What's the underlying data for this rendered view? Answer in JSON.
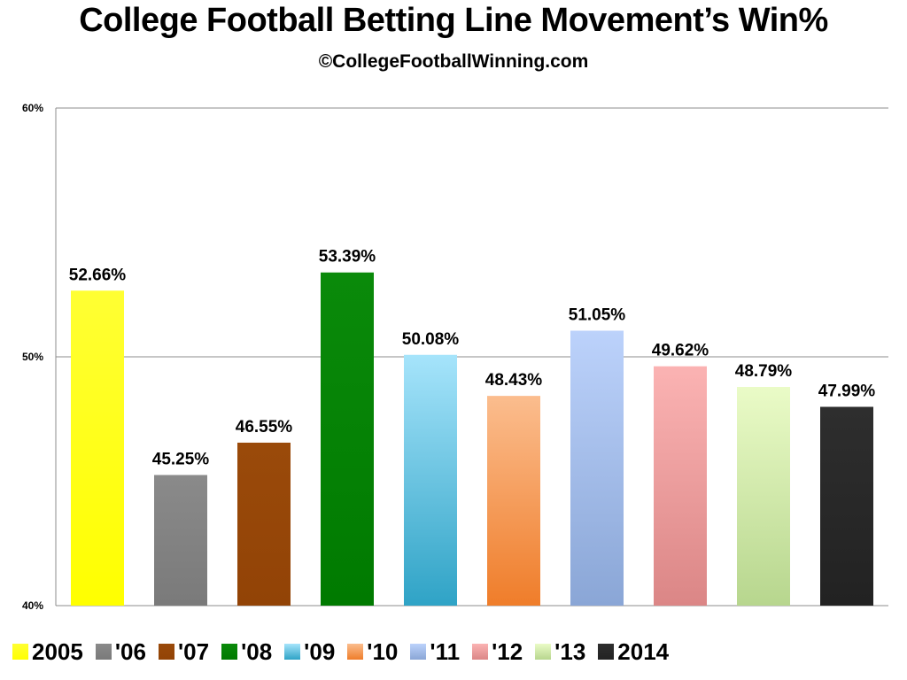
{
  "title": "College Football Betting Line Movement’s Win%",
  "subtitle": "©CollegeFootballWinning.com",
  "chart_data": {
    "type": "bar",
    "categories": [
      "2005",
      "'06",
      "'07",
      "'08",
      "'09",
      "'10",
      "'11",
      "'12",
      "'13",
      "2014"
    ],
    "values": [
      52.66,
      45.25,
      46.55,
      53.39,
      50.08,
      48.43,
      51.05,
      49.62,
      48.79,
      47.99
    ],
    "data_labels": [
      "52.66%",
      "45.25%",
      "46.55%",
      "53.39%",
      "50.08%",
      "48.43%",
      "51.05%",
      "49.62%",
      "48.79%",
      "47.99%"
    ],
    "colors": [
      [
        "#ffff33",
        "#ffff00"
      ],
      [
        "#8a8a8a",
        "#7a7a7a"
      ],
      [
        "#9a4a0a",
        "#924306"
      ],
      [
        "#0a8a0a",
        "#007a00"
      ],
      [
        "#a6e4fb",
        "#2fa3c6"
      ],
      [
        "#fbbd8e",
        "#ef7d2a"
      ],
      [
        "#bcd2fb",
        "#8aa6d6"
      ],
      [
        "#fbb3b3",
        "#db8686"
      ],
      [
        "#eafbc7",
        "#b7d68e"
      ],
      [
        "#2e2e2e",
        "#222222"
      ]
    ],
    "yticks": [
      40,
      50,
      60
    ],
    "ytick_labels": [
      "40%",
      "50%",
      "60%"
    ],
    "ylim": [
      40,
      60
    ],
    "grid": true,
    "legend": {
      "position": "bottom",
      "entries": [
        "2005",
        "'06",
        "'07",
        "'08",
        "'09",
        "'10",
        "'11",
        "'12",
        "'13",
        "2014"
      ]
    },
    "xlabel": "",
    "ylabel": ""
  }
}
